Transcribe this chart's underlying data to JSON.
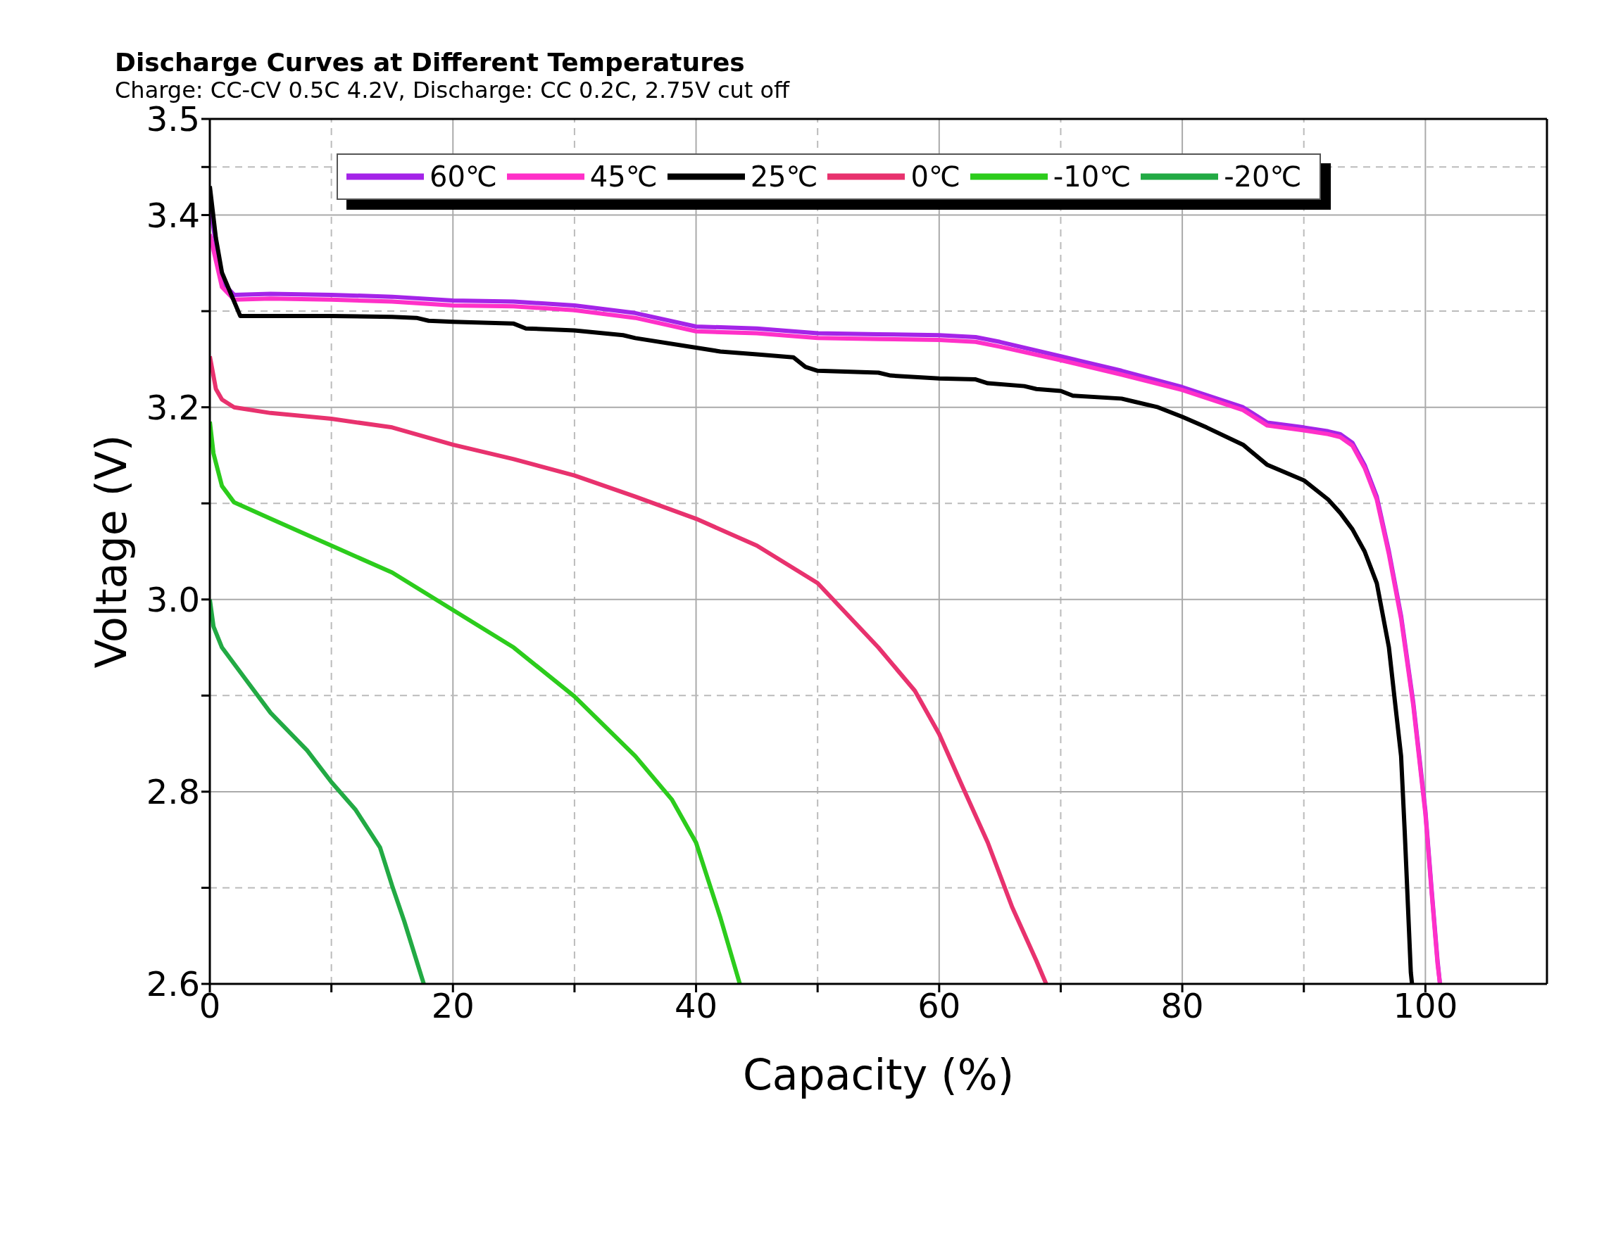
{
  "chart_data": {
    "type": "line",
    "title": "Discharge Curves at Different Temperatures",
    "subtitle": "Charge: CC-CV 0.5C 4.2V, Discharge: CC 0.2C, 2.75V cut off",
    "xlabel": "Capacity (%)",
    "ylabel": "Voltage (V)",
    "xlim": [
      0,
      110
    ],
    "xticks": [
      0,
      {
        "value": 10,
        "label": null
      },
      20,
      {
        "value": 30,
        "label": null
      },
      40,
      {
        "value": 50,
        "label": null
      },
      60,
      {
        "value": 70,
        "label": null
      },
      80,
      {
        "value": 90,
        "label": null
      },
      100
    ],
    "ylim": [
      2.6,
      3.5
    ],
    "yticks": [
      2.6,
      {
        "value": 2.7,
        "label": null
      },
      2.8,
      {
        "value": 2.9,
        "label": null
      },
      {
        "value": 3,
        "label": "3.0"
      },
      {
        "value": 3.1,
        "label": null
      },
      3.2,
      {
        "value": 3.3,
        "label": null
      },
      3.4,
      {
        "value": 3.45,
        "label": null
      },
      3.5
    ],
    "grid": true,
    "legend": "top",
    "marker": "none",
    "line_style": "solid",
    "series": [
      {
        "name": "60℃",
        "color": "#a424e8",
        "x": [
          0,
          1,
          2,
          5,
          10,
          15,
          20,
          25,
          30,
          35,
          40,
          45,
          50,
          55,
          60,
          63,
          65,
          70,
          75,
          80,
          85,
          87,
          90,
          92,
          93,
          94,
          95,
          96,
          97,
          98,
          99,
          100,
          100.5,
          101,
          101.2
        ],
        "values": [
          3.41,
          3.33,
          3.317,
          3.318,
          3.317,
          3.315,
          3.311,
          3.31,
          3.306,
          3.298,
          3.284,
          3.282,
          3.277,
          3.276,
          3.275,
          3.273,
          3.268,
          3.253,
          3.238,
          3.221,
          3.2,
          3.184,
          3.179,
          3.175,
          3.172,
          3.163,
          3.14,
          3.107,
          3.05,
          2.983,
          2.893,
          2.78,
          2.7,
          2.624,
          2.6
        ]
      },
      {
        "name": "45℃",
        "color": "#ff30c8",
        "x": [
          0,
          1,
          2,
          5,
          10,
          15,
          20,
          25,
          30,
          35,
          40,
          45,
          50,
          55,
          60,
          63,
          65,
          70,
          75,
          80,
          85,
          87,
          90,
          92,
          93,
          94,
          95,
          96,
          97,
          98,
          99,
          100,
          100.5,
          101,
          101.2
        ],
        "values": [
          3.38,
          3.325,
          3.312,
          3.313,
          3.312,
          3.31,
          3.306,
          3.305,
          3.301,
          3.293,
          3.279,
          3.277,
          3.272,
          3.271,
          3.27,
          3.268,
          3.263,
          3.249,
          3.234,
          3.218,
          3.197,
          3.181,
          3.176,
          3.172,
          3.169,
          3.16,
          3.137,
          3.104,
          3.047,
          2.98,
          2.89,
          2.777,
          2.697,
          2.621,
          2.6
        ]
      },
      {
        "name": "25℃",
        "color": "#000000",
        "x": [
          0,
          0.5,
          1,
          1.5,
          2.5,
          5,
          10,
          15,
          17,
          18,
          20,
          25,
          26,
          30,
          34,
          35,
          40,
          42,
          45,
          48,
          49,
          50,
          55,
          56,
          60,
          63,
          64,
          67,
          68,
          70,
          71,
          75,
          76,
          78,
          80,
          82,
          85,
          87,
          90,
          92,
          93,
          94,
          95,
          96,
          97,
          97.5,
          98,
          98.3,
          98.5,
          98.8,
          98.9
        ],
        "values": [
          3.43,
          3.376,
          3.34,
          3.325,
          3.295,
          3.295,
          3.295,
          3.294,
          3.293,
          3.29,
          3.289,
          3.287,
          3.282,
          3.28,
          3.275,
          3.272,
          3.262,
          3.258,
          3.255,
          3.252,
          3.242,
          3.238,
          3.236,
          3.233,
          3.23,
          3.229,
          3.225,
          3.222,
          3.219,
          3.217,
          3.212,
          3.209,
          3.206,
          3.2,
          3.19,
          3.179,
          3.161,
          3.14,
          3.124,
          3.104,
          3.09,
          3.073,
          3.05,
          3.017,
          2.95,
          2.893,
          2.837,
          2.758,
          2.7,
          2.612,
          2.6
        ]
      },
      {
        "name": "0℃",
        "color": "#e8326e",
        "x": [
          0,
          0.5,
          1,
          2,
          5,
          10,
          15,
          20,
          25,
          30,
          35,
          40,
          45,
          50,
          55,
          58,
          60,
          62,
          64,
          66,
          68,
          68.8
        ],
        "values": [
          3.253,
          3.219,
          3.208,
          3.2,
          3.194,
          3.188,
          3.179,
          3.161,
          3.146,
          3.129,
          3.107,
          3.084,
          3.056,
          3.017,
          2.95,
          2.905,
          2.86,
          2.803,
          2.747,
          2.68,
          2.624,
          2.6
        ]
      },
      {
        "name": "-10℃",
        "color": "#2ccc1c",
        "x": [
          0,
          0.3,
          1,
          2,
          5,
          10,
          15,
          20,
          25,
          30,
          35,
          38,
          40,
          42,
          43.6
        ],
        "values": [
          3.185,
          3.152,
          3.118,
          3.101,
          3.084,
          3.056,
          3.028,
          2.989,
          2.95,
          2.899,
          2.837,
          2.792,
          2.747,
          2.669,
          2.6
        ]
      },
      {
        "name": "-20℃",
        "color": "#22aa44",
        "x": [
          0,
          0.3,
          1,
          3,
          5,
          8,
          10,
          12,
          14,
          15,
          16,
          17.6
        ],
        "values": [
          3.0,
          2.972,
          2.95,
          2.916,
          2.882,
          2.843,
          2.81,
          2.781,
          2.742,
          2.702,
          2.665,
          2.6
        ]
      }
    ]
  }
}
